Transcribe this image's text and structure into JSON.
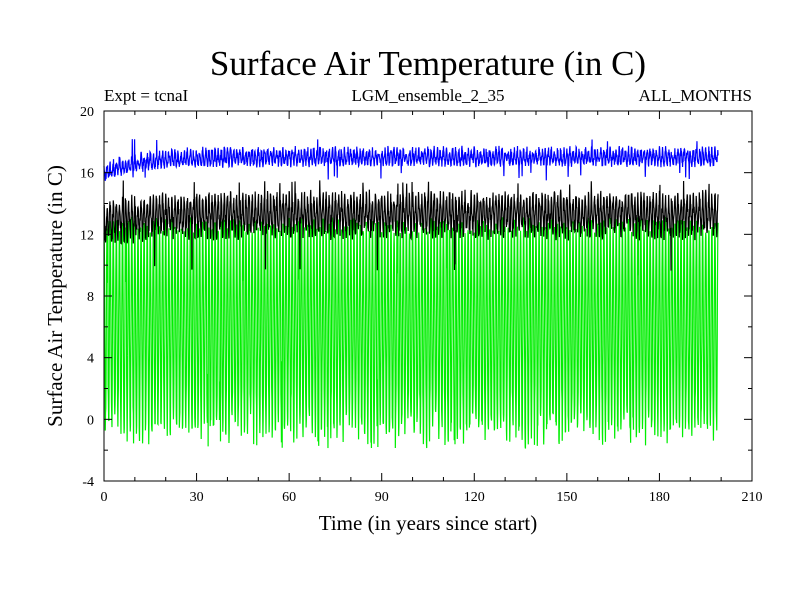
{
  "chart_data": {
    "type": "line",
    "title": "Surface Air Temperature (in C)",
    "subtitle_left": "Expt = tcnaI",
    "subtitle_center": "LGM_ensemble_2_35",
    "subtitle_right": "ALL_MONTHS",
    "xlabel": "Time (in years since start)",
    "ylabel": "Surface Air Temperature (in C)",
    "xlim": [
      0,
      210
    ],
    "ylim": [
      -4,
      20
    ],
    "xticks": [
      0,
      30,
      60,
      90,
      120,
      150,
      180,
      210
    ],
    "yticks": [
      -4,
      0,
      4,
      8,
      12,
      16,
      20
    ],
    "x_minor_step": 10,
    "y_minor_step": 2,
    "grid": false,
    "series": [
      {
        "name": "green",
        "color": "#00ee00",
        "x_start": 0,
        "x_end": 199,
        "samples_per_year": 12,
        "mean": 6.0,
        "amplitude": 6.6,
        "min_noise": 1.1,
        "max_noise": 0.55,
        "spike_low": -1.9,
        "spike_high": 13.0
      },
      {
        "name": "black",
        "color": "#000000",
        "x_start": 0,
        "x_end": 199,
        "samples_per_year": 12,
        "mean": 13.3,
        "amplitude": 1.1,
        "min_noise": 0.6,
        "max_noise": 0.5,
        "early_offset": -0.6,
        "spike_low": 9.6,
        "spike_high": 15.5
      },
      {
        "name": "blue",
        "color": "#0000ff",
        "x_start": 0,
        "x_end": 199,
        "samples_per_year": 12,
        "mean": 17.0,
        "amplitude": 0.4,
        "min_noise": 0.25,
        "max_noise": 0.35,
        "early_offset": -1.0,
        "spike_low": 15.5,
        "spike_high": 18.3
      }
    ]
  }
}
